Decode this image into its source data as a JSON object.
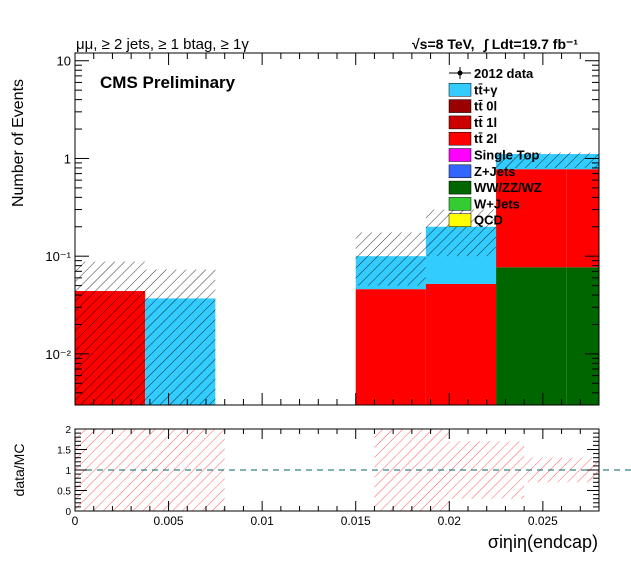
{
  "header": {
    "left": "μμ, ≥ 2 jets, ≥ 1 btag, ≥ 1γ",
    "right_energy": "√s=8 TeV,",
    "right_lumi": "∫ Ldt=19.7 fb⁻¹",
    "label": "CMS Preliminary"
  },
  "colors": {
    "ttgamma": "#33ccff",
    "tt0l": "#990000",
    "tt1l": "#cc0000",
    "tt2l": "#ff0000",
    "singletop": "#ff00ff",
    "zjets": "#3366ff",
    "diboson": "#006600",
    "wjets": "#33cc33",
    "qcd": "#ffff00",
    "data": "#000000"
  },
  "chart_data": [
    {
      "type": "bar",
      "stacked": true,
      "ylog": true,
      "ylabel": "Number of Events",
      "ylim": [
        0.003,
        12
      ],
      "xlim": [
        0,
        0.028
      ],
      "yticks": [
        {
          "value": 0.01,
          "label": "10⁻²"
        },
        {
          "value": 0.1,
          "label": "10⁻¹"
        },
        {
          "value": 1,
          "label": "1"
        },
        {
          "value": 10,
          "label": "10"
        }
      ],
      "bins": [
        {
          "x0": 0.0,
          "x1": 0.00375
        },
        {
          "x0": 0.00375,
          "x1": 0.0075
        },
        {
          "x0": 0.0075,
          "x1": 0.01125
        },
        {
          "x0": 0.01125,
          "x1": 0.015
        },
        {
          "x0": 0.015,
          "x1": 0.01875
        },
        {
          "x0": 0.01875,
          "x1": 0.0225
        },
        {
          "x0": 0.0225,
          "x1": 0.02625
        },
        {
          "x0": 0.02625,
          "x1": 0.028
        }
      ],
      "series": [
        {
          "name": "WW/ZZ/WZ",
          "key": "diboson",
          "values": [
            0,
            0,
            0,
            0,
            0,
            0,
            0.077,
            0.077
          ]
        },
        {
          "name": "tt̄ 2l",
          "key": "tt2l",
          "values": [
            0.044,
            0,
            0,
            0,
            0.046,
            0.052,
            0.7,
            0.7
          ]
        },
        {
          "name": "tt̄+γ",
          "key": "ttgamma",
          "values": [
            0,
            0.037,
            0,
            0,
            0.054,
            0.148,
            0.333,
            0.333
          ]
        }
      ],
      "uncertainty": [
        {
          "x0": 0.0,
          "x1": 0.00375,
          "low": 0.003,
          "high": 0.088
        },
        {
          "x0": 0.00375,
          "x1": 0.0075,
          "low": 0.003,
          "high": 0.073
        },
        {
          "x0": 0.015,
          "x1": 0.01875,
          "low": 0.05,
          "high": 0.175
        },
        {
          "x0": 0.01875,
          "x1": 0.0225,
          "low": 0.1,
          "high": 0.3
        },
        {
          "x0": 0.0225,
          "x1": 0.02625,
          "low": 0.8,
          "high": 1.15
        },
        {
          "x0": 0.02625,
          "x1": 0.028,
          "low": 0.8,
          "high": 1.15
        }
      ],
      "legend": [
        {
          "label": "2012 data",
          "key": "data",
          "marker": "point"
        },
        {
          "label": "tt̄+γ",
          "key": "ttgamma"
        },
        {
          "label": "tt̄ 0l",
          "key": "tt0l"
        },
        {
          "label": "tt̄ 1l",
          "key": "tt1l"
        },
        {
          "label": "tt̄ 2l",
          "key": "tt2l"
        },
        {
          "label": "Single Top",
          "key": "singletop"
        },
        {
          "label": "Z+Jets",
          "key": "zjets"
        },
        {
          "label": "WW/ZZ/WZ",
          "key": "diboson"
        },
        {
          "label": "W+Jets",
          "key": "wjets"
        },
        {
          "label": "QCD",
          "key": "qcd"
        }
      ],
      "legend_position": "top-right"
    },
    {
      "type": "ratio",
      "ylabel": "data/MC",
      "xlabel": "σiηiη(endcap)",
      "ylim": [
        0,
        2
      ],
      "xlim": [
        0,
        0.028
      ],
      "yticks": [
        0,
        0.5,
        1,
        1.5,
        2
      ],
      "xticks": [
        0,
        0.005,
        0.01,
        0.015,
        0.02,
        0.025
      ],
      "xtick_labels": [
        "0",
        "0.005",
        "0.01",
        "0.015",
        "0.02",
        "0.025"
      ],
      "reference_line": 1,
      "uncertainty_bands": [
        {
          "x0": 0.0,
          "x1": 0.008,
          "low": 0,
          "high": 2
        },
        {
          "x0": 0.016,
          "x1": 0.02,
          "low": 0,
          "high": 2
        },
        {
          "x0": 0.02,
          "x1": 0.024,
          "low": 0.3,
          "high": 1.7
        },
        {
          "x0": 0.024,
          "x1": 0.028,
          "low": 0.7,
          "high": 1.3
        }
      ]
    }
  ]
}
